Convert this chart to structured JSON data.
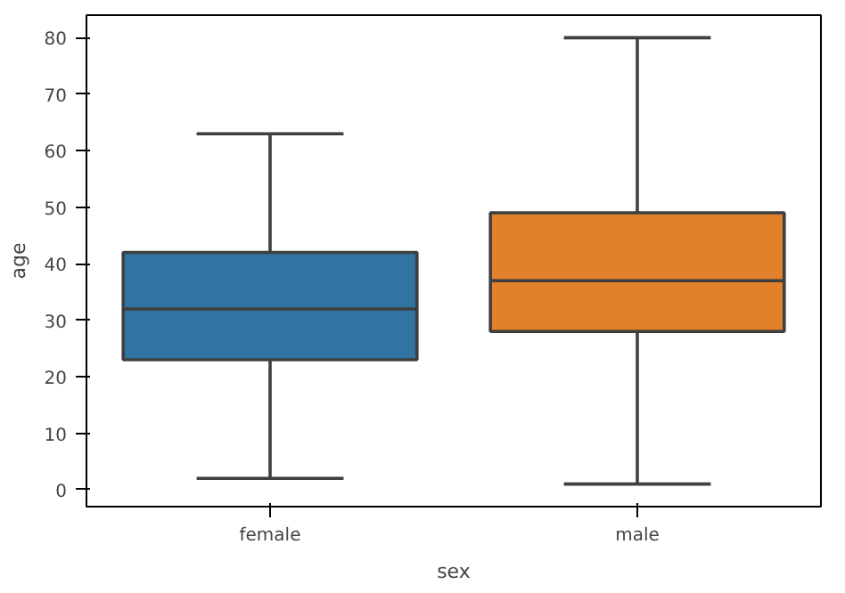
{
  "chart_data": {
    "type": "box",
    "xlabel": "sex",
    "ylabel": "age",
    "categories": [
      "female",
      "male"
    ],
    "boxes": [
      {
        "low": 2,
        "q1": 23,
        "median": 32,
        "q3": 42,
        "high": 63
      },
      {
        "low": 1,
        "q1": 28,
        "median": 37,
        "q3": 49,
        "high": 80
      }
    ],
    "colors": [
      "#3274a1",
      "#e1812c"
    ],
    "ylim": [
      -3,
      84
    ],
    "yticks": [
      0,
      10,
      20,
      30,
      40,
      50,
      60,
      70,
      80
    ],
    "grid": false
  }
}
